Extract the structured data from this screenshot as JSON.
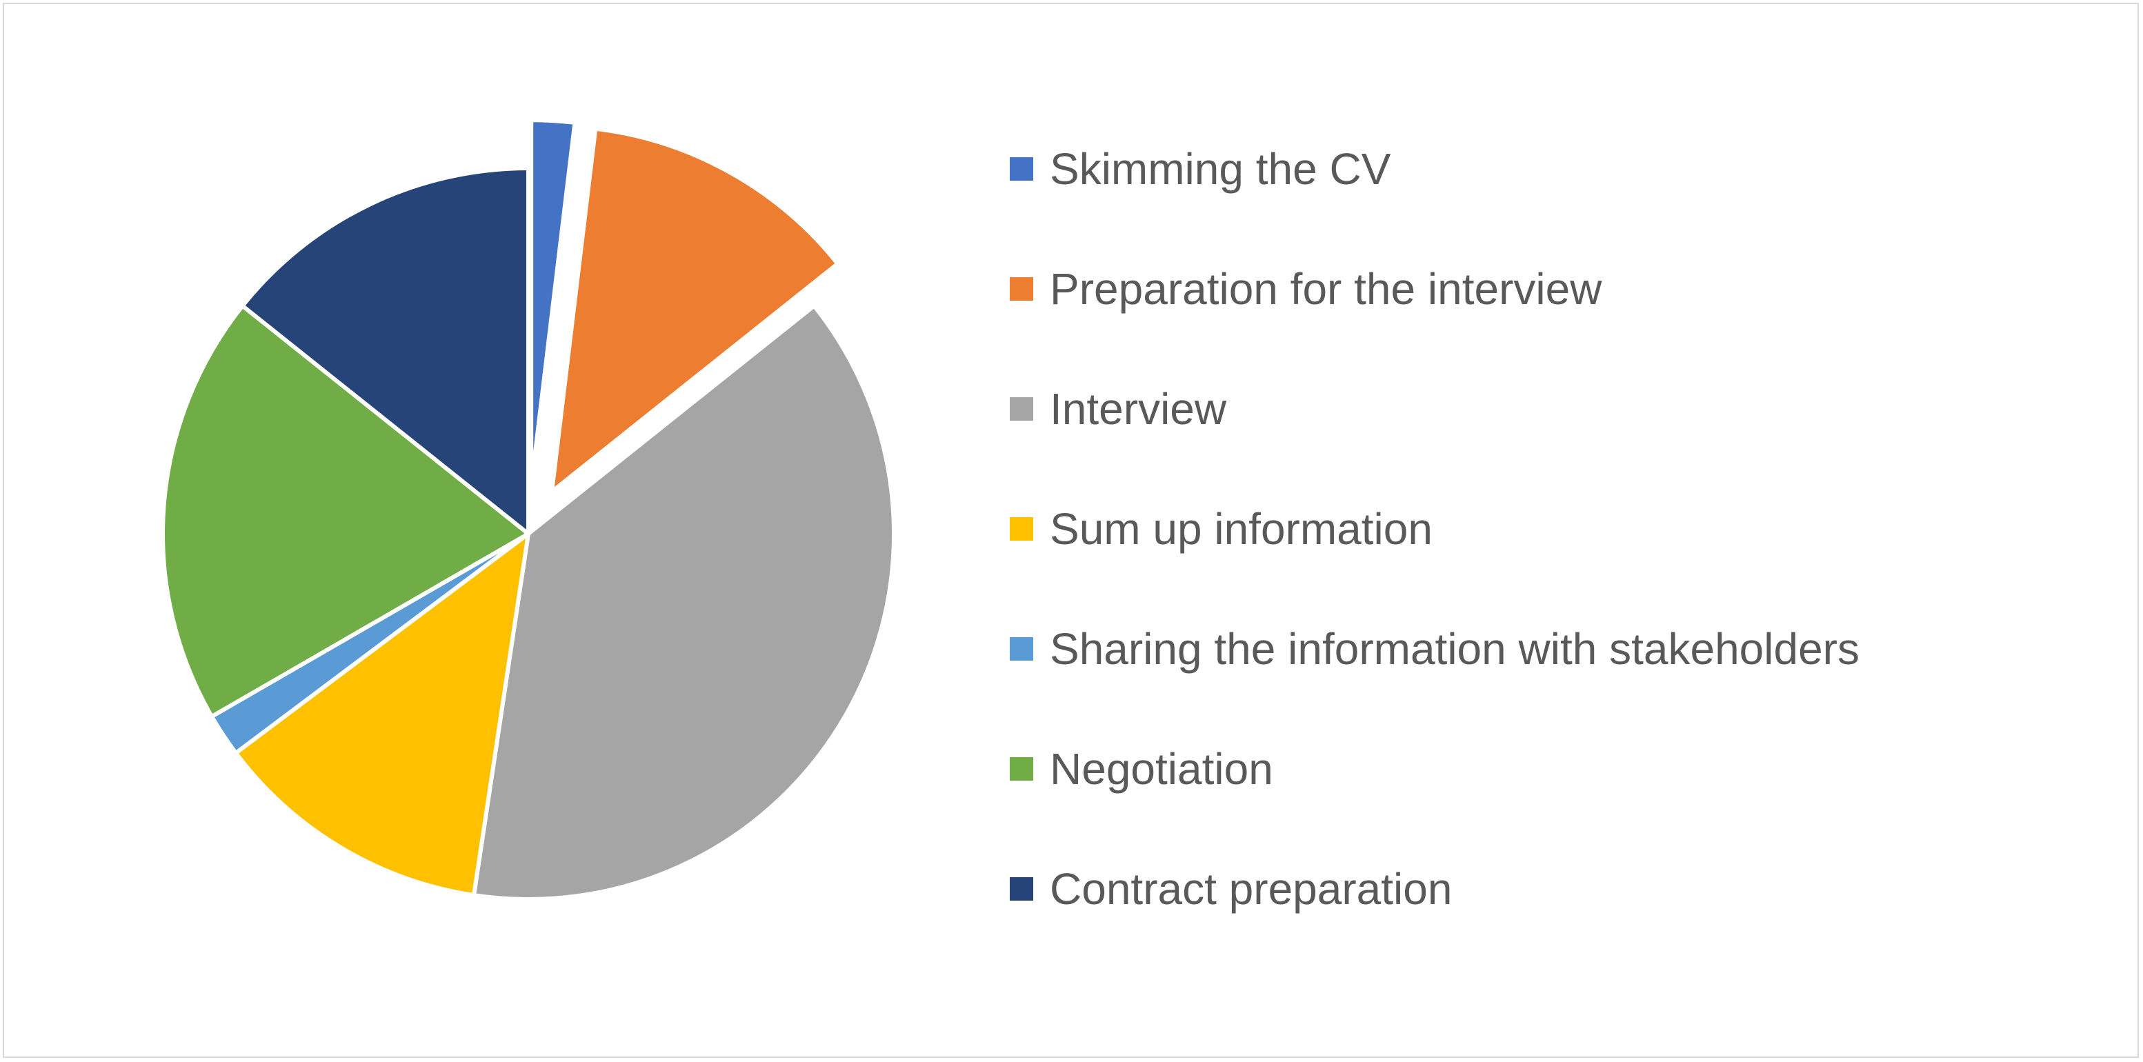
{
  "chart_data": {
    "type": "pie",
    "categories": [
      "Skimming the CV",
      "Preparation for the interview",
      "Interview",
      "Sum up information",
      "Sharing the information with stakeholders",
      "Negotiation",
      "Contract preparation"
    ],
    "values": [
      2,
      13,
      40,
      13,
      2,
      20,
      15
    ],
    "value_unit": "percent (estimated share)",
    "colors": [
      "#4472C4",
      "#ED7D31",
      "#A5A5A5",
      "#FFC000",
      "#5B9BD5",
      "#70AD47",
      "#264478"
    ],
    "exploded": [
      "Skimming the CV",
      "Preparation for the interview"
    ],
    "start_angle": "12 o'clock",
    "direction": "clockwise",
    "legend_placement": "right",
    "title": ""
  }
}
